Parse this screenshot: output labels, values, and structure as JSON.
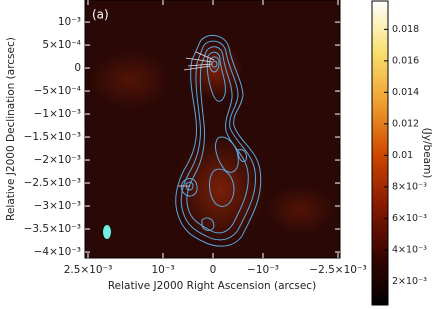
{
  "chart_data": {
    "type": "image",
    "panel_label": "(a)",
    "x_label": "Relative J2000 Right Ascension (arcsec)",
    "y_label": "Relative J2000 Declination (arcsec)",
    "xlim": [
      0.00256,
      -0.00254
    ],
    "ylim": [
      0.00148,
      -0.00413
    ],
    "xticks": [
      {
        "value": 0.0025,
        "label": "2.5×10⁻³"
      },
      {
        "value": 0.001,
        "label": "10⁻³"
      },
      0,
      {
        "value": -0.001,
        "label": "−10⁻³"
      },
      {
        "value": -0.0025,
        "label": "−2.5×10⁻³"
      }
    ],
    "yticks": [
      {
        "value": 0.001,
        "label": "10⁻³"
      },
      {
        "value": 0.0005,
        "label": "5×10⁻⁴"
      },
      0,
      {
        "value": -0.0005,
        "label": "−5×10⁻⁴"
      },
      {
        "value": -0.001,
        "label": "−1×10⁻³"
      },
      {
        "value": -0.0015,
        "label": "−1.5×10⁻³"
      },
      {
        "value": -0.002,
        "label": "−2×10⁻³"
      },
      {
        "value": -0.0025,
        "label": "−2.5×10⁻³"
      },
      {
        "value": -0.003,
        "label": "−3×10⁻³"
      },
      {
        "value": -0.0035,
        "label": "−3.5×10⁻³"
      },
      {
        "value": -0.004,
        "label": "−4×10⁻³"
      }
    ],
    "colorbar": {
      "label": "(Jy/beam)",
      "lim": [
        0.0005,
        0.0198
      ],
      "ticks": [
        0.018,
        0.016,
        0.014,
        0.012,
        0.01,
        {
          "value": 0.008,
          "label": "8×10⁻³"
        },
        {
          "value": 0.006,
          "label": "6×10⁻³"
        },
        {
          "value": 0.004,
          "label": "4×10⁻³"
        },
        {
          "value": 0.002,
          "label": "2×10⁻³"
        }
      ],
      "colormap": [
        "#000000",
        "#3a0600",
        "#8a1a00",
        "#d04a00",
        "#f0a030",
        "#f8e070",
        "#ffffff"
      ]
    }
  }
}
